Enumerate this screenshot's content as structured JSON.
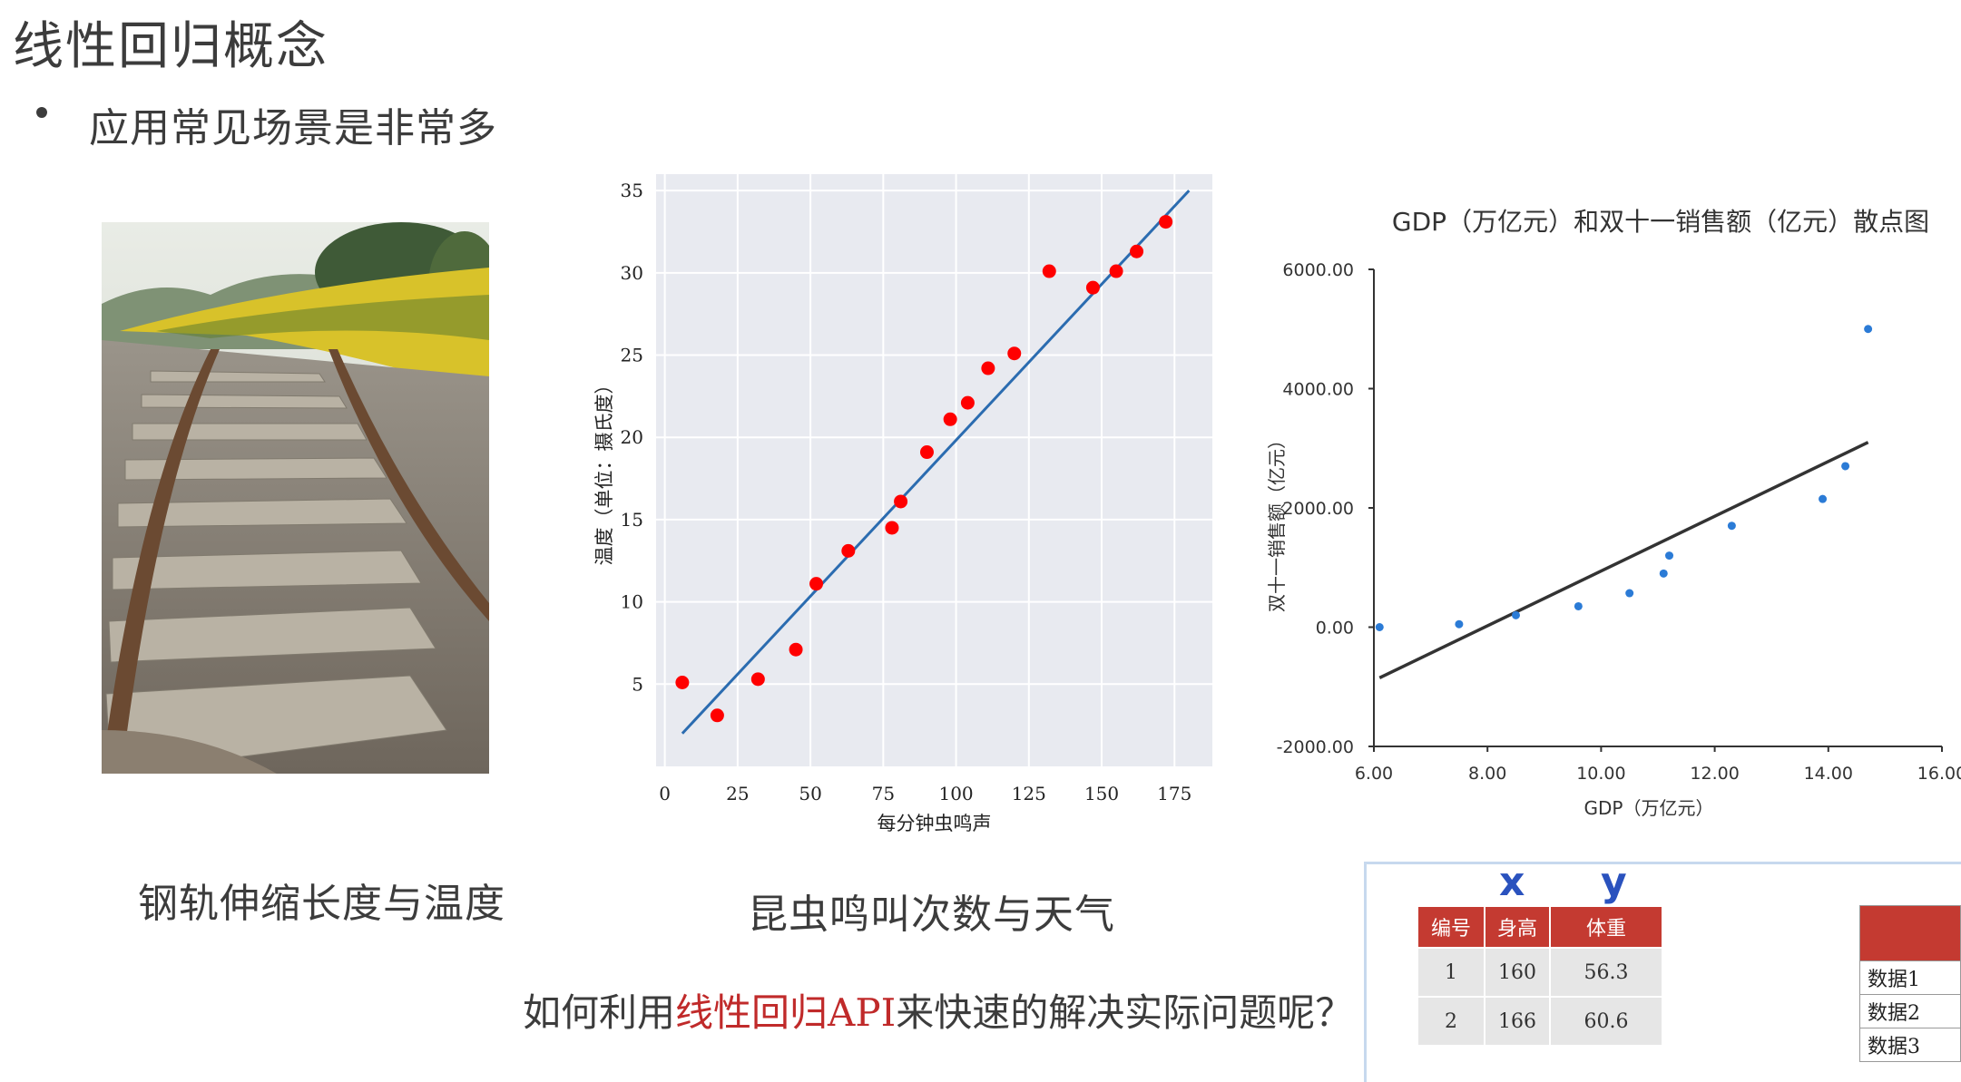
{
  "slide": {
    "title": "线性回归概念",
    "bullet": "应用常见场景是非常多",
    "caption_rail": "钢轨伸缩长度与温度",
    "caption_insect": "昆虫鸣叫次数与天气",
    "question_pre": "如何利用",
    "question_highlight": "线性回归API",
    "question_post": "来快速的解决实际问题呢？"
  },
  "colors": {
    "title": "#3c3c3c",
    "highlight": "#c02a2a",
    "table_header": "#c43a31",
    "xy_label": "#2a52be"
  },
  "chart_data": [
    {
      "type": "scatter",
      "title": "",
      "xlabel": "每分钟虫鸣声",
      "ylabel": "温度（单位：摄氏度）",
      "xlim": [
        -3,
        188
      ],
      "ylim": [
        0,
        36
      ],
      "xticks": [
        0,
        25,
        50,
        75,
        100,
        125,
        150,
        175
      ],
      "yticks": [
        5,
        10,
        15,
        20,
        25,
        30,
        35
      ],
      "grid": true,
      "point_color": "#ff0000",
      "line_color": "#2b6cb0",
      "points": [
        {
          "x": 6,
          "y": 5.1
        },
        {
          "x": 18,
          "y": 3.1
        },
        {
          "x": 32,
          "y": 5.3
        },
        {
          "x": 45,
          "y": 7.1
        },
        {
          "x": 52,
          "y": 11.1
        },
        {
          "x": 63,
          "y": 13.1
        },
        {
          "x": 78,
          "y": 14.5
        },
        {
          "x": 81,
          "y": 16.1
        },
        {
          "x": 90,
          "y": 19.1
        },
        {
          "x": 98,
          "y": 21.1
        },
        {
          "x": 104,
          "y": 22.1
        },
        {
          "x": 111,
          "y": 24.2
        },
        {
          "x": 120,
          "y": 25.1
        },
        {
          "x": 132,
          "y": 30.1
        },
        {
          "x": 147,
          "y": 29.1
        },
        {
          "x": 155,
          "y": 30.1
        },
        {
          "x": 162,
          "y": 31.3
        },
        {
          "x": 172,
          "y": 33.1
        }
      ],
      "fit_line": [
        [
          6,
          2.0
        ],
        [
          180,
          35.0
        ]
      ]
    },
    {
      "type": "scatter",
      "title": "GDP（万亿元）和双十一销售额（亿元）散点图",
      "xlabel": "GDP（万亿元）",
      "ylabel": "双十一销售额（亿元）",
      "xlim": [
        6,
        16
      ],
      "ylim": [
        -2000,
        6000
      ],
      "xticks": [
        "6.00",
        "8.00",
        "10.00",
        "12.00",
        "14.00",
        "16.00"
      ],
      "yticks": [
        "-2000.00",
        "0.00",
        "2000.00",
        "4000.00",
        "6000.00"
      ],
      "grid": false,
      "point_color": "#2b7bd6",
      "line_color": "#333333",
      "points": [
        {
          "x": 6.1,
          "y": 0
        },
        {
          "x": 7.5,
          "y": 50
        },
        {
          "x": 8.5,
          "y": 200
        },
        {
          "x": 9.6,
          "y": 350
        },
        {
          "x": 10.5,
          "y": 570
        },
        {
          "x": 11.1,
          "y": 900
        },
        {
          "x": 11.2,
          "y": 1200
        },
        {
          "x": 12.3,
          "y": 1700
        },
        {
          "x": 13.9,
          "y": 2150
        },
        {
          "x": 14.3,
          "y": 2700
        },
        {
          "x": 14.7,
          "y": 5000
        }
      ],
      "fit_line": [
        [
          6.1,
          -850
        ],
        [
          14.7,
          3100
        ]
      ]
    }
  ],
  "table": {
    "x_label": "x",
    "y_label": "y",
    "headers": [
      "编号",
      "身高",
      "体重"
    ],
    "rows": [
      [
        "1",
        "160",
        "56.3"
      ],
      [
        "2",
        "166",
        "60.6"
      ]
    ],
    "side_rows": [
      "数据1",
      "数据2",
      "数据3"
    ]
  }
}
